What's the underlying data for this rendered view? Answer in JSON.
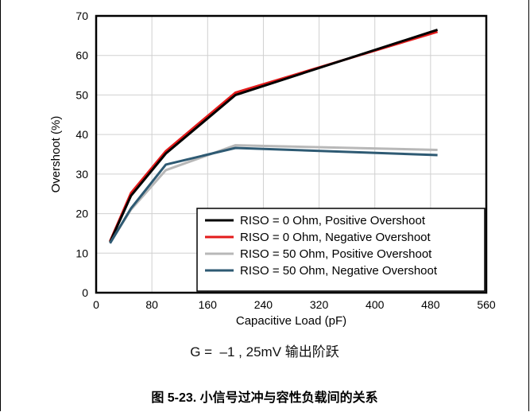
{
  "condition_text": "G =  –1 , 25mV 输出阶跃",
  "caption": "图 5-23. 小信号过冲与容性负载间的关系",
  "colors": {
    "series_black": "#000000",
    "series_red": "#e31b1b",
    "series_gray": "#b8b8b8",
    "series_blue": "#2e5a73",
    "grid": "#d0d0d0"
  },
  "chart_data": {
    "type": "line",
    "title": "",
    "xlabel": "Capacitive Load (pF)",
    "ylabel": "Overshoot (%)",
    "xlim": [
      0,
      560
    ],
    "ylim": [
      0,
      70
    ],
    "xticks": [
      "0",
      "80",
      "160",
      "240",
      "320",
      "400",
      "480",
      "560"
    ],
    "yticks": [
      "0",
      "10",
      "20",
      "30",
      "40",
      "50",
      "60",
      "70"
    ],
    "grid": true,
    "legend_position": "bottom-right",
    "series": [
      {
        "name": "RISO = 0 Ohm, Positive Overshoot",
        "color": "#000000",
        "x": [
          20,
          50,
          100,
          200,
          490
        ],
        "y": [
          12.8,
          24.5,
          35.2,
          50.0,
          66.5
        ]
      },
      {
        "name": "RISO = 0 Ohm, Negative Overshoot",
        "color": "#e31b1b",
        "x": [
          20,
          50,
          100,
          200,
          490
        ],
        "y": [
          13.0,
          25.2,
          35.8,
          50.6,
          66.0
        ]
      },
      {
        "name": "RISO = 50 Ohm, Positive Overshoot",
        "color": "#b8b8b8",
        "x": [
          20,
          50,
          100,
          200,
          490
        ],
        "y": [
          12.6,
          21.0,
          31.0,
          37.3,
          36.1
        ]
      },
      {
        "name": "RISO = 50 Ohm, Negative Overshoot",
        "color": "#2e5a73",
        "x": [
          20,
          50,
          100,
          200,
          490
        ],
        "y": [
          12.5,
          21.3,
          32.4,
          36.6,
          34.8
        ]
      }
    ]
  }
}
